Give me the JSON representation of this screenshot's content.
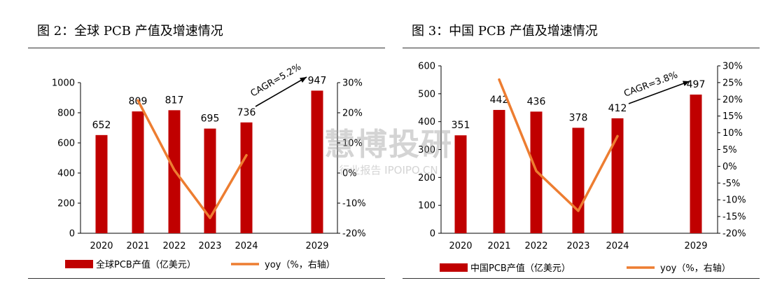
{
  "watermark": {
    "main": "慧博投研",
    "sub": "行业报告 IPOIPO.CN"
  },
  "chart_data": [
    {
      "type": "bar",
      "title": "图 2：全球 PCB 产值及增速情况",
      "categories": [
        "2020",
        "2021",
        "2022",
        "2023",
        "2024",
        "2029"
      ],
      "series": [
        {
          "name": "全球PCB产值（亿美元）",
          "type": "bar",
          "axis": "left",
          "values": [
            652,
            809,
            817,
            695,
            736,
            947
          ]
        },
        {
          "name": "yoy（%，右轴）",
          "type": "line",
          "axis": "right",
          "values": [
            null,
            24.1,
            1.0,
            -14.9,
            5.9,
            null
          ]
        }
      ],
      "y_left": {
        "min": 0,
        "max": 1000,
        "ticks": [
          "0",
          "200",
          "400",
          "600",
          "800",
          "1000"
        ]
      },
      "y_right": {
        "min": -20,
        "max": 30,
        "ticks": [
          "-20%",
          "-10%",
          "0%",
          "10%",
          "20%",
          "30%"
        ]
      },
      "annotation": "CAGR=5.2%",
      "colors": {
        "bar": "#C00000",
        "line": "#ED7D31"
      },
      "grid": false,
      "legend": "bottom"
    },
    {
      "type": "bar",
      "title": "图 3：中国 PCB 产值及增速情况",
      "categories": [
        "2020",
        "2021",
        "2022",
        "2023",
        "2024",
        "2029"
      ],
      "series": [
        {
          "name": "中国PCB产值（亿美元）",
          "type": "bar",
          "axis": "left",
          "values": [
            351,
            442,
            436,
            378,
            412,
            497
          ]
        },
        {
          "name": "yoy（%，右轴）",
          "type": "line",
          "axis": "right",
          "values": [
            null,
            25.9,
            -1.4,
            -13.3,
            9.0,
            null
          ]
        }
      ],
      "y_left": {
        "min": 0,
        "max": 600,
        "ticks": [
          "0",
          "100",
          "200",
          "300",
          "400",
          "500",
          "600"
        ]
      },
      "y_right": {
        "min": -20,
        "max": 30,
        "ticks": [
          "-20%",
          "-15%",
          "-10%",
          "-5%",
          "0%",
          "5%",
          "10%",
          "15%",
          "20%",
          "25%",
          "30%"
        ]
      },
      "annotation": "CAGR=3.8%",
      "colors": {
        "bar": "#C00000",
        "line": "#ED7D31"
      },
      "grid": false,
      "legend": "bottom"
    }
  ]
}
